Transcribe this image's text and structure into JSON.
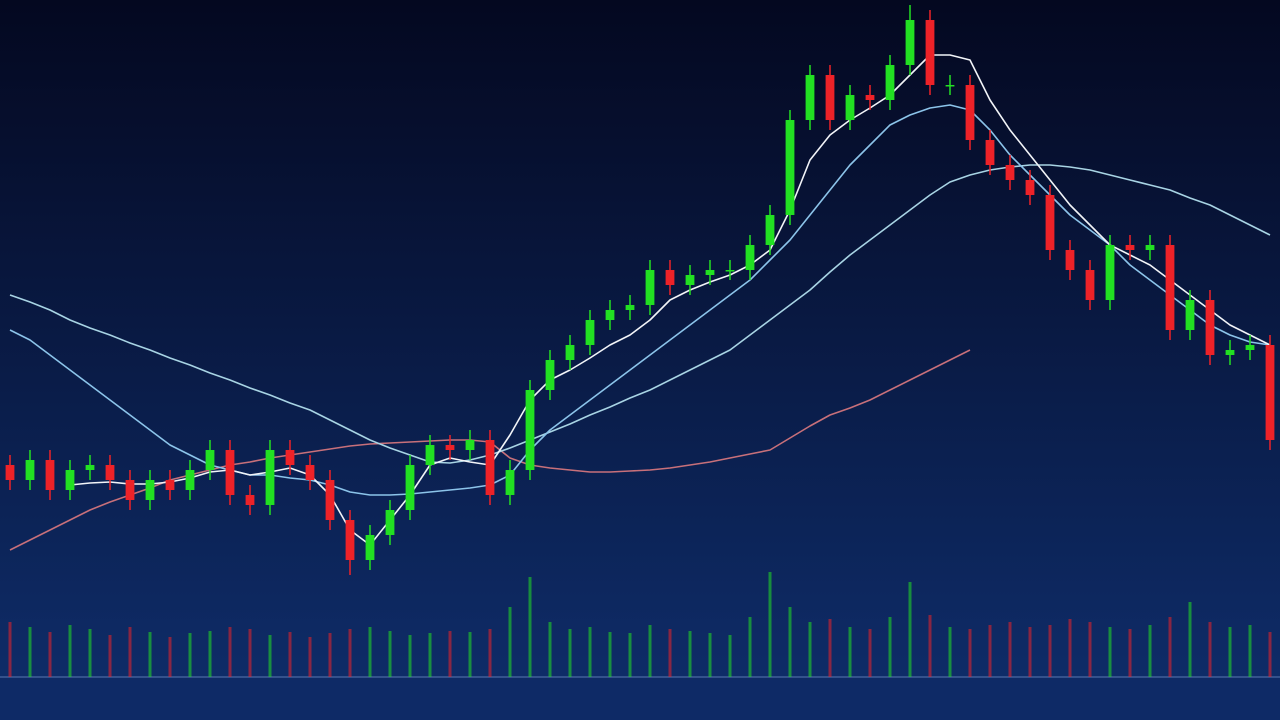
{
  "chart_data": {
    "type": "candlestick",
    "up_color": "#22e022",
    "down_color": "#ee2228",
    "ylim": [
      0,
      720
    ],
    "volume_ylim": [
      0,
      120
    ],
    "open": [
      255,
      240,
      260,
      230,
      250,
      255,
      240,
      220,
      240,
      230,
      250,
      270,
      225,
      215,
      270,
      255,
      240,
      200,
      160,
      185,
      210,
      255,
      275,
      270,
      280,
      225,
      250,
      330,
      360,
      375,
      400,
      410,
      415,
      450,
      435,
      445,
      450,
      450,
      475,
      505,
      600,
      645,
      600,
      625,
      620,
      655,
      700,
      635,
      635,
      580,
      555,
      540,
      525,
      470,
      450,
      420,
      475,
      470,
      475,
      390,
      420,
      365,
      370,
      375
    ],
    "high": [
      265,
      270,
      270,
      260,
      265,
      265,
      250,
      250,
      250,
      260,
      280,
      280,
      235,
      280,
      280,
      265,
      250,
      210,
      195,
      220,
      265,
      285,
      285,
      290,
      290,
      260,
      340,
      370,
      385,
      410,
      420,
      425,
      460,
      460,
      455,
      460,
      460,
      485,
      515,
      610,
      655,
      655,
      635,
      635,
      665,
      715,
      710,
      645,
      645,
      590,
      565,
      550,
      535,
      480,
      460,
      485,
      485,
      485,
      485,
      430,
      430,
      380,
      385,
      385
    ],
    "low": [
      230,
      230,
      220,
      220,
      240,
      230,
      210,
      210,
      220,
      220,
      240,
      215,
      205,
      205,
      245,
      230,
      190,
      145,
      150,
      175,
      200,
      245,
      260,
      260,
      215,
      215,
      240,
      320,
      350,
      365,
      390,
      400,
      405,
      425,
      425,
      435,
      440,
      440,
      465,
      495,
      590,
      590,
      590,
      610,
      610,
      645,
      625,
      625,
      570,
      545,
      530,
      515,
      460,
      440,
      410,
      410,
      460,
      460,
      380,
      380,
      355,
      355,
      360,
      270
    ],
    "close": [
      240,
      260,
      230,
      250,
      255,
      240,
      220,
      240,
      230,
      250,
      270,
      225,
      215,
      270,
      255,
      240,
      200,
      160,
      185,
      210,
      255,
      275,
      270,
      280,
      225,
      250,
      330,
      360,
      375,
      400,
      410,
      415,
      450,
      435,
      445,
      450,
      450,
      475,
      505,
      600,
      645,
      600,
      625,
      620,
      655,
      700,
      635,
      635,
      580,
      555,
      540,
      525,
      470,
      450,
      420,
      475,
      470,
      475,
      390,
      420,
      365,
      370,
      375,
      280
    ],
    "volume": [
      55,
      50,
      45,
      52,
      48,
      42,
      50,
      45,
      40,
      44,
      46,
      50,
      48,
      42,
      45,
      40,
      44,
      48,
      50,
      46,
      42,
      44,
      46,
      45,
      48,
      70,
      100,
      55,
      48,
      50,
      45,
      44,
      52,
      48,
      46,
      44,
      42,
      60,
      105,
      70,
      55,
      58,
      50,
      48,
      60,
      95,
      62,
      50,
      48,
      52,
      55,
      50,
      52,
      58,
      55,
      50,
      48,
      52,
      60,
      75,
      55,
      50,
      52,
      45
    ],
    "series": [
      {
        "color": "#c8707a",
        "values": [
          170,
          180,
          190,
          200,
          210,
          218,
          225,
          232,
          240,
          245,
          250,
          255,
          258,
          262,
          265,
          268,
          271,
          274,
          276,
          277,
          278,
          279,
          280,
          280,
          278,
          262,
          255,
          252,
          250,
          248,
          248,
          249,
          250,
          252,
          255,
          258,
          262,
          266,
          270,
          282,
          294,
          305,
          312,
          320,
          330,
          340,
          350,
          360,
          370,
          null,
          null,
          null,
          null,
          null,
          null,
          null,
          null,
          null,
          null,
          null,
          null,
          null,
          null,
          null
        ]
      },
      {
        "color": "#a8d4e4",
        "values": [
          425,
          418,
          410,
          400,
          392,
          385,
          377,
          370,
          362,
          355,
          347,
          340,
          332,
          325,
          317,
          310,
          300,
          290,
          280,
          272,
          265,
          258,
          257,
          260,
          265,
          272,
          280,
          288,
          296,
          305,
          313,
          322,
          330,
          340,
          350,
          360,
          370,
          385,
          400,
          415,
          430,
          448,
          465,
          480,
          495,
          510,
          525,
          538,
          545,
          550,
          553,
          555,
          555,
          553,
          550,
          545,
          540,
          535,
          530,
          522,
          515,
          505,
          495,
          485
        ]
      },
      {
        "color": "#8cc4ea",
        "values": [
          390,
          380,
          365,
          350,
          335,
          320,
          305,
          290,
          275,
          265,
          255,
          250,
          245,
          245,
          242,
          240,
          235,
          228,
          225,
          225,
          226,
          228,
          230,
          232,
          235,
          245,
          270,
          290,
          305,
          320,
          335,
          350,
          365,
          380,
          395,
          410,
          425,
          440,
          460,
          480,
          505,
          530,
          555,
          575,
          595,
          605,
          612,
          615,
          610,
          590,
          565,
          545,
          525,
          505,
          490,
          475,
          455,
          440,
          425,
          410,
          395,
          385,
          378,
          375
        ]
      },
      {
        "color": "#f2f4f8",
        "values": [
          null,
          null,
          null,
          235,
          237,
          238,
          236,
          236,
          238,
          242,
          248,
          250,
          245,
          248,
          252,
          245,
          225,
          190,
          175,
          200,
          225,
          255,
          262,
          258,
          255,
          285,
          320,
          340,
          350,
          362,
          375,
          385,
          400,
          420,
          430,
          438,
          445,
          455,
          470,
          510,
          560,
          585,
          600,
          612,
          625,
          645,
          665,
          665,
          660,
          620,
          590,
          565,
          540,
          515,
          495,
          475,
          465,
          455,
          440,
          425,
          410,
          395,
          385,
          375
        ]
      }
    ]
  }
}
